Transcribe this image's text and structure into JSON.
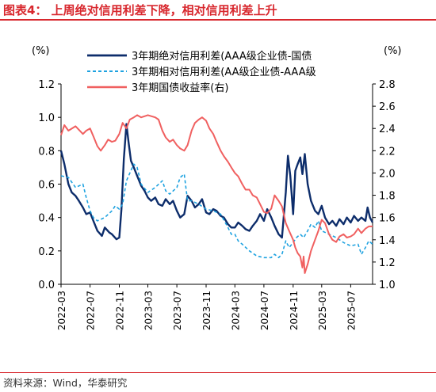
{
  "title": "图表4：  上周绝对信用利差下降，相对信用利差上升",
  "source": "资料来源：Wind，华泰研究",
  "colors": {
    "brand": "#d8282e",
    "abs": "#0d2d6b",
    "rel": "#1ea2e0",
    "yield": "#f06060"
  },
  "chart_data": {
    "type": "line",
    "left_axis": {
      "unit": "(%)",
      "ylim": [
        0.0,
        1.2
      ],
      "ticks": [
        "0.0",
        "0.2",
        "0.4",
        "0.6",
        "0.8",
        "1.0",
        "1.2"
      ]
    },
    "right_axis": {
      "unit": "(%)",
      "ylim": [
        1.0,
        2.8
      ],
      "ticks": [
        "1.0",
        "1.2",
        "1.4",
        "1.6",
        "1.8",
        "2.0",
        "2.2",
        "2.4",
        "2.6",
        "2.8"
      ]
    },
    "x_ticks": [
      "2022-03",
      "2022-07",
      "2022-11",
      "2023-03",
      "2023-07",
      "2023-11",
      "2024-03",
      "2024-07",
      "2024-11",
      "2025-03",
      "2025-07"
    ],
    "x_range": [
      "2022-03",
      "2025-10"
    ],
    "grid": false,
    "legend_position": "top",
    "series": [
      {
        "name": "3年期绝对信用利差(AAA级企业债-国债",
        "axis": "left",
        "style": "solid",
        "points": [
          [
            "2022-03",
            0.8
          ],
          [
            "2022-03-15",
            0.72
          ],
          [
            "2022-04",
            0.6
          ],
          [
            "2022-04-15",
            0.55
          ],
          [
            "2022-05",
            0.53
          ],
          [
            "2022-05-15",
            0.5
          ],
          [
            "2022-06",
            0.46
          ],
          [
            "2022-06-15",
            0.42
          ],
          [
            "2022-07",
            0.43
          ],
          [
            "2022-07-15",
            0.38
          ],
          [
            "2022-08",
            0.32
          ],
          [
            "2022-08-20",
            0.29
          ],
          [
            "2022-09",
            0.34
          ],
          [
            "2022-09-20",
            0.31
          ],
          [
            "2022-10",
            0.3
          ],
          [
            "2022-10-20",
            0.27
          ],
          [
            "2022-11",
            0.28
          ],
          [
            "2022-11-10",
            0.45
          ],
          [
            "2022-11-20",
            0.75
          ],
          [
            "2022-12",
            0.96
          ],
          [
            "2022-12-10",
            0.85
          ],
          [
            "2022-12-20",
            0.74
          ],
          [
            "2023-01",
            0.7
          ],
          [
            "2023-01-15",
            0.65
          ],
          [
            "2023-02",
            0.59
          ],
          [
            "2023-02-15",
            0.56
          ],
          [
            "2023-03",
            0.52
          ],
          [
            "2023-03-15",
            0.5
          ],
          [
            "2023-04",
            0.52
          ],
          [
            "2023-04-15",
            0.48
          ],
          [
            "2023-05",
            0.47
          ],
          [
            "2023-05-15",
            0.51
          ],
          [
            "2023-06",
            0.48
          ],
          [
            "2023-06-15",
            0.5
          ],
          [
            "2023-07",
            0.44
          ],
          [
            "2023-07-15",
            0.4
          ],
          [
            "2023-08",
            0.42
          ],
          [
            "2023-08-15",
            0.53
          ],
          [
            "2023-09",
            0.5
          ],
          [
            "2023-09-15",
            0.46
          ],
          [
            "2023-10",
            0.48
          ],
          [
            "2023-10-15",
            0.51
          ],
          [
            "2023-11",
            0.43
          ],
          [
            "2023-11-15",
            0.42
          ],
          [
            "2023-12",
            0.45
          ],
          [
            "2023-12-15",
            0.44
          ],
          [
            "2024-01",
            0.41
          ],
          [
            "2024-01-15",
            0.4
          ],
          [
            "2024-02",
            0.36
          ],
          [
            "2024-02-15",
            0.34
          ],
          [
            "2024-03",
            0.34
          ],
          [
            "2024-03-15",
            0.37
          ],
          [
            "2024-04",
            0.35
          ],
          [
            "2024-04-15",
            0.33
          ],
          [
            "2024-05",
            0.32
          ],
          [
            "2024-05-15",
            0.35
          ],
          [
            "2024-06",
            0.38
          ],
          [
            "2024-06-15",
            0.42
          ],
          [
            "2024-07",
            0.38
          ],
          [
            "2024-07-15",
            0.45
          ],
          [
            "2024-08",
            0.4
          ],
          [
            "2024-08-15",
            0.35
          ],
          [
            "2024-09",
            0.3
          ],
          [
            "2024-09-15",
            0.28
          ],
          [
            "2024-10",
            0.55
          ],
          [
            "2024-10-10",
            0.77
          ],
          [
            "2024-10-20",
            0.65
          ],
          [
            "2024-11",
            0.42
          ],
          [
            "2024-11-10",
            0.68
          ],
          [
            "2024-11-20",
            0.72
          ],
          [
            "2024-12",
            0.76
          ],
          [
            "2024-12-10",
            0.66
          ],
          [
            "2024-12-20",
            0.78
          ],
          [
            "2025-01",
            0.6
          ],
          [
            "2025-01-15",
            0.5
          ],
          [
            "2025-02",
            0.44
          ],
          [
            "2025-02-15",
            0.42
          ],
          [
            "2025-03",
            0.47
          ],
          [
            "2025-03-15",
            0.4
          ],
          [
            "2025-04",
            0.36
          ],
          [
            "2025-04-15",
            0.38
          ],
          [
            "2025-05",
            0.35
          ],
          [
            "2025-05-15",
            0.39
          ],
          [
            "2025-06",
            0.36
          ],
          [
            "2025-06-15",
            0.4
          ],
          [
            "2025-07",
            0.37
          ],
          [
            "2025-07-15",
            0.41
          ],
          [
            "2025-08",
            0.38
          ],
          [
            "2025-08-15",
            0.4
          ],
          [
            "2025-09",
            0.38
          ],
          [
            "2025-09-10",
            0.46
          ],
          [
            "2025-09-20",
            0.4
          ],
          [
            "2025-10",
            0.37
          ]
        ]
      },
      {
        "name": "3年期相对信用利差(AA级企业债-AAA级",
        "axis": "left",
        "style": "dashed",
        "points": [
          [
            "2022-03",
            0.65
          ],
          [
            "2022-04",
            0.64
          ],
          [
            "2022-05",
            0.58
          ],
          [
            "2022-06",
            0.6
          ],
          [
            "2022-06-15",
            0.52
          ],
          [
            "2022-07",
            0.44
          ],
          [
            "2022-07-15",
            0.4
          ],
          [
            "2022-08",
            0.38
          ],
          [
            "2022-09",
            0.4
          ],
          [
            "2022-10",
            0.44
          ],
          [
            "2022-10-15",
            0.47
          ],
          [
            "2022-11",
            0.45
          ],
          [
            "2022-11-15",
            0.48
          ],
          [
            "2022-12",
            0.62
          ],
          [
            "2023-01",
            0.72
          ],
          [
            "2023-01-15",
            0.7
          ],
          [
            "2023-02",
            0.6
          ],
          [
            "2023-03",
            0.55
          ],
          [
            "2023-04",
            0.58
          ],
          [
            "2023-05",
            0.62
          ],
          [
            "2023-05-15",
            0.56
          ],
          [
            "2023-06",
            0.54
          ],
          [
            "2023-07",
            0.58
          ],
          [
            "2023-07-15",
            0.64
          ],
          [
            "2023-08",
            0.66
          ],
          [
            "2023-08-15",
            0.5
          ],
          [
            "2023-09",
            0.5
          ],
          [
            "2023-10",
            0.48
          ],
          [
            "2023-11",
            0.45
          ],
          [
            "2023-12",
            0.44
          ],
          [
            "2024-01",
            0.42
          ],
          [
            "2024-02",
            0.34
          ],
          [
            "2024-02-15",
            0.3
          ],
          [
            "2024-03",
            0.3
          ],
          [
            "2024-03-15",
            0.26
          ],
          [
            "2024-04",
            0.24
          ],
          [
            "2024-05",
            0.2
          ],
          [
            "2024-06",
            0.17
          ],
          [
            "2024-07",
            0.16
          ],
          [
            "2024-08",
            0.16
          ],
          [
            "2024-08-15",
            0.18
          ],
          [
            "2024-09",
            0.16
          ],
          [
            "2024-09-15",
            0.18
          ],
          [
            "2024-10",
            0.26
          ],
          [
            "2024-10-15",
            0.22
          ],
          [
            "2024-11",
            0.25
          ],
          [
            "2024-11-15",
            0.28
          ],
          [
            "2024-12",
            0.3
          ],
          [
            "2024-12-15",
            0.28
          ],
          [
            "2025-01",
            0.32
          ],
          [
            "2025-01-15",
            0.36
          ],
          [
            "2025-02",
            0.34
          ],
          [
            "2025-02-15",
            0.38
          ],
          [
            "2025-03",
            0.32
          ],
          [
            "2025-04",
            0.3
          ],
          [
            "2025-05",
            0.28
          ],
          [
            "2025-06",
            0.25
          ],
          [
            "2025-07",
            0.23
          ],
          [
            "2025-08",
            0.24
          ],
          [
            "2025-08-15",
            0.18
          ],
          [
            "2025-09",
            0.22
          ],
          [
            "2025-09-15",
            0.26
          ],
          [
            "2025-10",
            0.24
          ]
        ]
      },
      {
        "name": "3年期国债收益率(右)",
        "axis": "right",
        "style": "solid",
        "points": [
          [
            "2022-03",
            2.34
          ],
          [
            "2022-03-15",
            2.43
          ],
          [
            "2022-04",
            2.38
          ],
          [
            "2022-05",
            2.42
          ],
          [
            "2022-06",
            2.35
          ],
          [
            "2022-06-15",
            2.38
          ],
          [
            "2022-07",
            2.4
          ],
          [
            "2022-07-15",
            2.33
          ],
          [
            "2022-08",
            2.24
          ],
          [
            "2022-08-15",
            2.2
          ],
          [
            "2022-09",
            2.25
          ],
          [
            "2022-09-15",
            2.3
          ],
          [
            "2022-10",
            2.28
          ],
          [
            "2022-10-15",
            2.29
          ],
          [
            "2022-11",
            2.35
          ],
          [
            "2022-11-15",
            2.45
          ],
          [
            "2022-12",
            2.4
          ],
          [
            "2022-12-15",
            2.48
          ],
          [
            "2023-01",
            2.5
          ],
          [
            "2023-01-15",
            2.52
          ],
          [
            "2023-02",
            2.5
          ],
          [
            "2023-03",
            2.52
          ],
          [
            "2023-04",
            2.5
          ],
          [
            "2023-04-15",
            2.48
          ],
          [
            "2023-05",
            2.38
          ],
          [
            "2023-05-15",
            2.32
          ],
          [
            "2023-06",
            2.28
          ],
          [
            "2023-06-15",
            2.3
          ],
          [
            "2023-07",
            2.25
          ],
          [
            "2023-07-15",
            2.22
          ],
          [
            "2023-08",
            2.2
          ],
          [
            "2023-08-15",
            2.25
          ],
          [
            "2023-09",
            2.38
          ],
          [
            "2023-09-15",
            2.45
          ],
          [
            "2023-10",
            2.48
          ],
          [
            "2023-10-15",
            2.5
          ],
          [
            "2023-11",
            2.47
          ],
          [
            "2023-11-15",
            2.4
          ],
          [
            "2023-12",
            2.35
          ],
          [
            "2023-12-15",
            2.28
          ],
          [
            "2024-01",
            2.2
          ],
          [
            "2024-01-15",
            2.15
          ],
          [
            "2024-02",
            2.1
          ],
          [
            "2024-02-15",
            2.05
          ],
          [
            "2024-03",
            2.0
          ],
          [
            "2024-03-15",
            1.97
          ],
          [
            "2024-04",
            1.9
          ],
          [
            "2024-04-15",
            1.85
          ],
          [
            "2024-05",
            1.85
          ],
          [
            "2024-05-15",
            1.8
          ],
          [
            "2024-06",
            1.78
          ],
          [
            "2024-06-15",
            1.72
          ],
          [
            "2024-07",
            1.65
          ],
          [
            "2024-07-15",
            1.64
          ],
          [
            "2024-08",
            1.68
          ],
          [
            "2024-08-15",
            1.8
          ],
          [
            "2024-09",
            1.75
          ],
          [
            "2024-09-15",
            1.7
          ],
          [
            "2024-10",
            1.55
          ],
          [
            "2024-10-15",
            1.48
          ],
          [
            "2024-11",
            1.4
          ],
          [
            "2024-11-10",
            1.33
          ],
          [
            "2024-11-20",
            1.28
          ],
          [
            "2024-12",
            1.25
          ],
          [
            "2024-12-10",
            1.15
          ],
          [
            "2024-12-15",
            1.25
          ],
          [
            "2024-12-20",
            1.1
          ],
          [
            "2025-01",
            1.18
          ],
          [
            "2025-01-15",
            1.3
          ],
          [
            "2025-02",
            1.4
          ],
          [
            "2025-02-15",
            1.48
          ],
          [
            "2025-03",
            1.58
          ],
          [
            "2025-03-15",
            1.55
          ],
          [
            "2025-04",
            1.45
          ],
          [
            "2025-04-15",
            1.4
          ],
          [
            "2025-05",
            1.38
          ],
          [
            "2025-05-15",
            1.43
          ],
          [
            "2025-06",
            1.45
          ],
          [
            "2025-06-15",
            1.42
          ],
          [
            "2025-07",
            1.43
          ],
          [
            "2025-07-15",
            1.45
          ],
          [
            "2025-08",
            1.5
          ],
          [
            "2025-08-15",
            1.46
          ],
          [
            "2025-09",
            1.5
          ],
          [
            "2025-09-15",
            1.52
          ],
          [
            "2025-10",
            1.52
          ]
        ]
      }
    ]
  }
}
